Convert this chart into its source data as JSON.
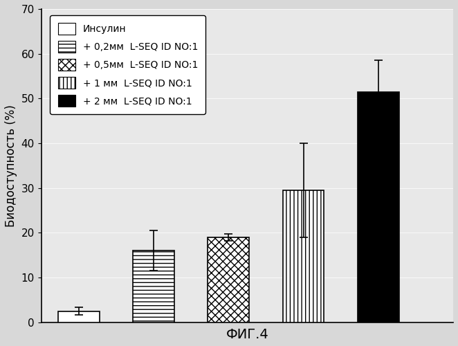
{
  "values": [
    2.5,
    16.0,
    19.0,
    29.5,
    51.5
  ],
  "errors": [
    0.8,
    4.5,
    0.8,
    10.5,
    7.0
  ],
  "facecolors": [
    "white",
    "white",
    "white",
    "white",
    "black"
  ],
  "edgecolors": [
    "black",
    "black",
    "black",
    "black",
    "black"
  ],
  "ylabel": "Биодоступность (%)",
  "xlabel": "ФИГ.4",
  "ylim": [
    0,
    70
  ],
  "yticks": [
    0,
    10,
    20,
    30,
    40,
    50,
    60,
    70
  ],
  "bar_width": 0.55,
  "x_positions": [
    0.5,
    1.5,
    2.5,
    3.5,
    4.5
  ],
  "xlim": [
    0,
    5.5
  ],
  "legend_labels": [
    "Инсулин",
    "+ 0,2мм  L-SEQ ID NO:1",
    "+ 0,5мм  L-SEQ ID NO:1",
    "+ 1 мм  L-SEQ ID NO:1",
    "+ 2 мм  L-SEQ ID NO:1"
  ],
  "background_color": "#d8d8d8",
  "plot_bg_color": "#e8e8e8",
  "axis_fontsize": 12,
  "legend_fontsize": 10,
  "tick_fontsize": 11
}
